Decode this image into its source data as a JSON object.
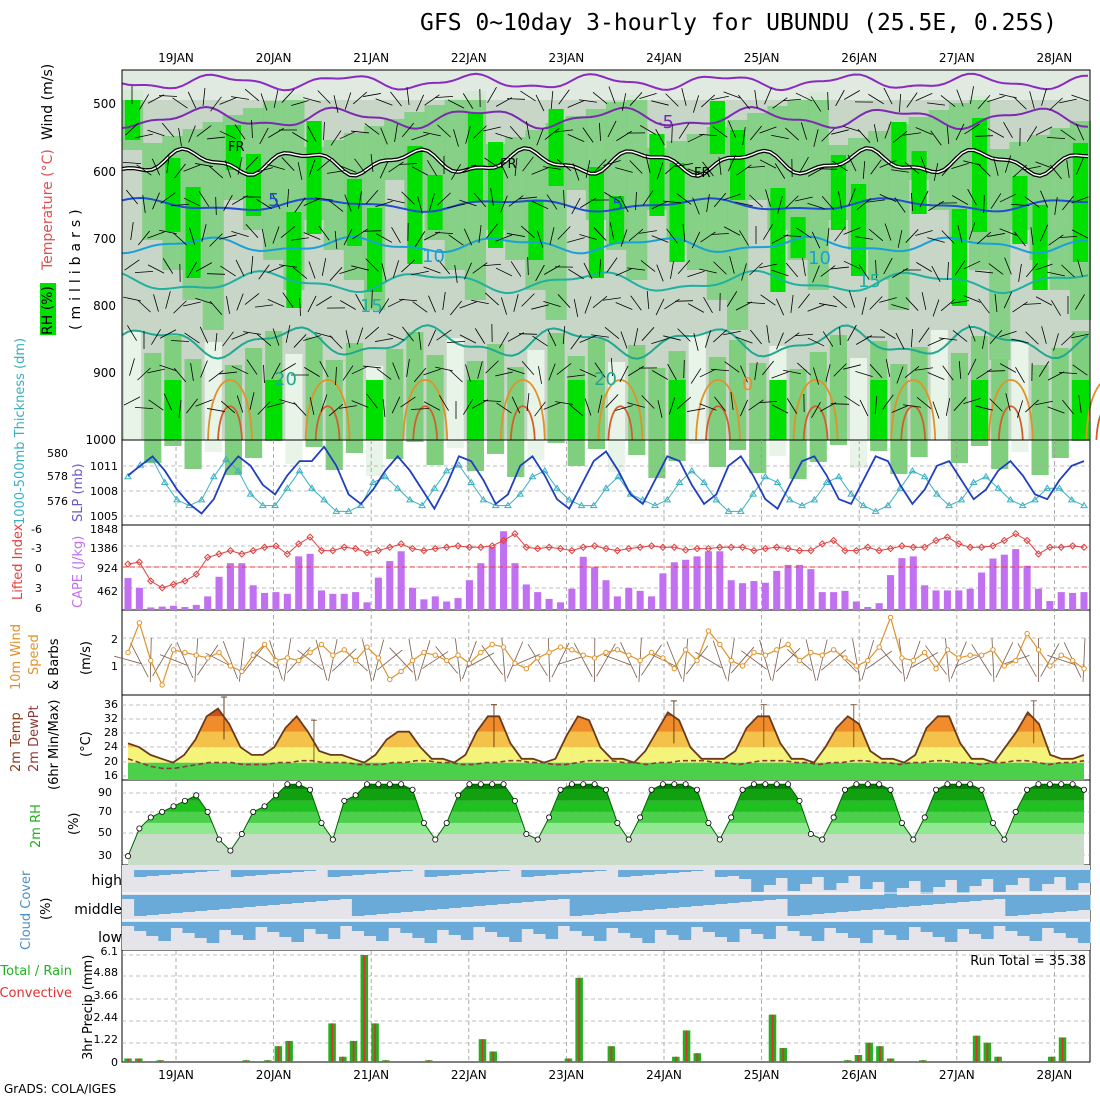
{
  "title": "GFS 0~10day 3-hourly for UBUNDU (25.5E, 0.25S)",
  "credit": "GrADS: COLA/IGES",
  "dates": [
    "19JAN",
    "20JAN",
    "21JAN",
    "22JAN",
    "23JAN",
    "24JAN",
    "25JAN",
    "26JAN",
    "27JAN",
    "28JAN"
  ],
  "colors": {
    "rh_green": "#00e000",
    "rh_mid": "#7fcf7f",
    "rh_grey": "#c8d6c8",
    "slp": "#1f3fbf",
    "thickness": "#3ab0c0",
    "cape": "#c070f0",
    "lifted": "#e04040",
    "wind": "#e0922a",
    "temp_line": "#6a3a1a",
    "dewpt": "#8a3a3a",
    "cloud": "#6aaad8",
    "precip_total": "#20b020",
    "precip_conv": "#e03030"
  },
  "panels": {
    "profile": {
      "ylabel_rh": "RH (%)",
      "ylabel_temp": "Temperature (°C)",
      "ylabel_wind": "Wind (m/s)",
      "ylabel_unit": "(millibars)",
      "pressure_ticks": [
        "500",
        "600",
        "700",
        "800",
        "900",
        "1000"
      ],
      "contour_labels": [
        "-5",
        "FR",
        "FR",
        "FR",
        "5",
        "5",
        "10",
        "10",
        "15",
        "15",
        "20",
        "20",
        "0"
      ]
    },
    "slp": {
      "label_left": "1000-500mb Thickness (dm)",
      "label_right": "SLP (mb)",
      "thickness_ticks": [
        "580",
        "578",
        "576"
      ],
      "slp_ticks": [
        "1011",
        "1008",
        "1005"
      ]
    },
    "cape": {
      "label_left": "Lifted Index",
      "label_right": "CAPE (J/kg)",
      "li_ticks": [
        "-6",
        "-3",
        "0",
        "3",
        "6"
      ],
      "cape_ticks": [
        "1848",
        "1386",
        "924",
        "462"
      ]
    },
    "wind": {
      "label_1": "10m Wind",
      "label_2": "Speed",
      "label_3": "& Barbs",
      "unit": "(m/s)",
      "ticks": [
        "2",
        "1"
      ]
    },
    "temp": {
      "label_1": "2m Temp",
      "label_2": "2m DewPt",
      "label_3": "(6hr Min/Max)",
      "unit": "(°C)",
      "ticks": [
        "36",
        "32",
        "28",
        "24",
        "20",
        "16"
      ]
    },
    "rh": {
      "label": "2m RH",
      "unit": "(%)",
      "ticks": [
        "90",
        "70",
        "50",
        "30"
      ]
    },
    "cloud": {
      "label": "Cloud Cover",
      "unit": "(%)",
      "levels": [
        "high",
        "middle",
        "low"
      ]
    },
    "precip": {
      "label_1": "Total / Rain",
      "label_2": "Convective",
      "label_3": "3hr Precip (mm)",
      "run_total": "Run Total = 35.38",
      "ticks": [
        "6.1",
        "4.88",
        "3.66",
        "2.44",
        "1.22",
        "0"
      ]
    }
  },
  "chart_data": {
    "type": "multi-panel meteogram",
    "title": "GFS 0~10day 3-hourly for UBUNDU (25.5E, 0.25S)",
    "x_categories": [
      "19JAN",
      "20JAN",
      "21JAN",
      "22JAN",
      "23JAN",
      "24JAN",
      "25JAN",
      "26JAN",
      "27JAN",
      "28JAN"
    ],
    "slp_mb": [
      1009.5,
      1010.5,
      1011.5,
      1010.0,
      1008.0,
      1006.5,
      1005.5,
      1007.0,
      1010.0,
      1011.5,
      1010.5,
      1008.5,
      1007.5,
      1009.5,
      1011.0,
      1011.0,
      1012.5,
      1010.5,
      1007.5,
      1006.5,
      1008.0,
      1010.0,
      1011.5,
      1010.0,
      1008.0,
      1006.0,
      1008.5,
      1011.5,
      1011.0,
      1009.0,
      1006.5,
      1007.5,
      1010.5,
      1011.5,
      1009.5,
      1007.0,
      1006.0,
      1008.5,
      1011.0,
      1012.0,
      1010.0,
      1007.5,
      1006.5,
      1009.0,
      1011.5,
      1011.0,
      1008.5,
      1006.5,
      1007.5,
      1010.5,
      1011.5,
      1009.5,
      1007.0,
      1006.0,
      1008.5,
      1011.0,
      1011.5,
      1009.5,
      1007.0,
      1006.5,
      1009.0,
      1011.5,
      1011.0,
      1008.5,
      1006.5,
      1008.0,
      1010.5,
      1011.0,
      1009.0,
      1007.0,
      1008.0,
      1010.0,
      1011.0,
      1009.5,
      1007.5,
      1007.0,
      1009.0,
      1010.5,
      1011.0
    ],
    "thickness_dm": [
      578.5,
      579.5,
      580.0,
      578.0,
      576.5,
      576.0,
      576.5,
      578.5,
      580.0,
      579.0,
      577.0,
      576.0,
      576.0,
      577.5,
      579.0,
      577.5,
      576.5,
      575.5,
      575.5,
      576.0,
      578.0,
      578.5,
      577.5,
      576.5,
      576.0,
      577.5,
      579.0,
      579.5,
      578.0,
      576.5,
      576.0,
      576.0,
      577.0,
      578.5,
      579.0,
      577.5,
      576.5,
      576.0,
      576.0,
      577.5,
      578.5,
      577.0,
      576.5,
      576.0,
      576.5,
      578.0,
      579.0,
      578.0,
      576.5,
      575.5,
      575.5,
      577.0,
      578.5,
      578.0,
      576.5,
      576.0,
      576.5,
      578.0,
      578.5,
      577.0,
      576.0,
      575.5,
      576.0,
      577.5,
      579.0,
      578.5,
      577.0,
      576.0,
      576.5,
      578.0,
      578.5,
      577.5,
      576.5,
      576.0,
      576.5,
      577.5,
      577.5,
      576.5,
      576.0
    ],
    "cape_jkg": [
      750,
      520,
      60,
      80,
      100,
      70,
      120,
      320,
      780,
      1100,
      1100,
      580,
      400,
      420,
      380,
      1260,
      1320,
      460,
      380,
      380,
      420,
      180,
      760,
      1150,
      1380,
      520,
      250,
      320,
      200,
      280,
      700,
      1100,
      1480,
      1850,
      1100,
      600,
      420,
      260,
      180,
      500,
      1250,
      1000,
      700,
      320,
      520,
      450,
      320,
      860,
      1120,
      1180,
      1260,
      1380,
      1380,
      700,
      630,
      680,
      640,
      920,
      1060,
      1060,
      960,
      420,
      420,
      450,
      200,
      70,
      160,
      820,
      1220,
      1260,
      580,
      460,
      460,
      460,
      500,
      880,
      1210,
      1300,
      1430,
      1040,
      500,
      210,
      420,
      400,
      420
    ],
    "lifted_index": [
      -0.5,
      -0.8,
      2.0,
      3.0,
      2.5,
      2.0,
      1.0,
      -1.5,
      -2.0,
      -2.5,
      -2.0,
      -2.5,
      -3.0,
      -3.2,
      -2.0,
      -3.5,
      -4.5,
      -2.5,
      -2.5,
      -3.0,
      -2.8,
      -2.2,
      -2.5,
      -3.0,
      -3.5,
      -2.8,
      -2.5,
      -2.8,
      -3.0,
      -3.2,
      -3.0,
      -3.0,
      -3.2,
      -4.0,
      -5.0,
      -3.0,
      -2.8,
      -3.0,
      -2.8,
      -2.5,
      -3.0,
      -3.2,
      -2.8,
      -2.5,
      -2.8,
      -3.0,
      -3.2,
      -3.0,
      -3.0,
      -2.6,
      -2.8,
      -2.8,
      -3.0,
      -3.0,
      -3.0,
      -2.5,
      -2.8,
      -3.0,
      -2.8,
      -2.5,
      -2.5,
      -3.5,
      -4.0,
      -2.5,
      -2.5,
      -3.0,
      -2.5,
      -2.8,
      -3.2,
      -3.0,
      -3.0,
      -4.0,
      -4.5,
      -3.5,
      -3.0,
      -3.0,
      -3.2,
      -4.0,
      -5.0,
      -4.0,
      -2.0,
      -3.0,
      -3.0,
      -3.2,
      -3.0
    ],
    "wind_speed_ms": [
      1.5,
      2.6,
      1.2,
      0.3,
      1.6,
      1.5,
      1.4,
      1.3,
      1.5,
      1.0,
      0.8,
      1.4,
      1.8,
      1.2,
      1.3,
      1.2,
      1.5,
      1.8,
      1.4,
      1.6,
      1.2,
      1.7,
      1.3,
      0.5,
      0.8,
      1.2,
      1.5,
      1.4,
      1.2,
      1.4,
      1.1,
      1.5,
      1.8,
      1.7,
      1.1,
      0.9,
      1.3,
      1.5,
      1.7,
      1.6,
      1.4,
      1.3,
      1.5,
      1.6,
      1.4,
      1.2,
      1.5,
      1.3,
      0.9,
      1.6,
      1.2,
      2.3,
      1.8,
      1.2,
      1.0,
      1.5,
      1.4,
      1.6,
      1.8,
      1.2,
      1.5,
      1.4,
      1.6,
      1.3,
      1.0,
      1.2,
      1.7,
      2.8,
      1.3,
      1.2,
      1.5,
      0.9,
      1.6,
      1.3,
      1.4,
      1.4,
      1.6,
      1.0,
      1.2,
      2.2,
      1.6,
      1.0,
      1.4,
      1.2,
      0.9
    ],
    "temp_2m_c": [
      25,
      24,
      22,
      21,
      20,
      22,
      26,
      32,
      34,
      30,
      24,
      22,
      22,
      24,
      29,
      32,
      28,
      23,
      22,
      22,
      21,
      20,
      22,
      26,
      28,
      28,
      24,
      21,
      21,
      20,
      22,
      28,
      32,
      32,
      25,
      21,
      21,
      20,
      21,
      27,
      32,
      31,
      24,
      21,
      21,
      20,
      23,
      28,
      33,
      31,
      24,
      21,
      21,
      21,
      23,
      29,
      32,
      32,
      25,
      21,
      21,
      20,
      24,
      29,
      32,
      30,
      23,
      21,
      21,
      20,
      22,
      29,
      32,
      32,
      25,
      21,
      21,
      20,
      24,
      28,
      33,
      30,
      22,
      21,
      21,
      22
    ],
    "dewpoint_2m_c": [
      21,
      20,
      19,
      18.5,
      18.5,
      19,
      19.5,
      20,
      20,
      20,
      19.5,
      19.5,
      19.5,
      20,
      20,
      20.5,
      20.5,
      20,
      20,
      20,
      19.5,
      19.5,
      19.5,
      20,
      20,
      20.5,
      20.5,
      20,
      20,
      19.5,
      19.5,
      20,
      20,
      20.5,
      20.5,
      20,
      20,
      19.5,
      19.5,
      20,
      20.5,
      20.5,
      20.5,
      20,
      20,
      19.5,
      20,
      20,
      20.5,
      20.5,
      20.5,
      20,
      20,
      19.5,
      20,
      20.5,
      20.5,
      20.5,
      20,
      20,
      19.5,
      20,
      20,
      20.5,
      20.5,
      20,
      20,
      19.5,
      20,
      20,
      20.5,
      20.5,
      20,
      20,
      19.5,
      20,
      20,
      20.5,
      20.5,
      20,
      19.5,
      20,
      20,
      20.5
    ],
    "rh_2m_pct": [
      30,
      55,
      65,
      70,
      75,
      80,
      85,
      70,
      45,
      35,
      50,
      70,
      75,
      85,
      95,
      95,
      90,
      60,
      45,
      80,
      85,
      95,
      95,
      95,
      95,
      90,
      60,
      45,
      60,
      85,
      95,
      95,
      95,
      95,
      80,
      50,
      45,
      65,
      90,
      95,
      95,
      95,
      90,
      60,
      45,
      65,
      90,
      95,
      95,
      95,
      90,
      60,
      45,
      65,
      90,
      95,
      95,
      95,
      95,
      80,
      50,
      45,
      65,
      90,
      95,
      95,
      95,
      90,
      60,
      45,
      65,
      90,
      95,
      95,
      95,
      90,
      60,
      45,
      70,
      90,
      95,
      95,
      95,
      95,
      90
    ],
    "precip_total_mm": [
      0.2,
      0.2,
      0,
      0.1,
      0,
      0,
      0,
      0,
      0,
      0,
      0,
      0.1,
      0,
      0.1,
      0.9,
      1.2,
      0,
      0,
      0,
      2.2,
      0.3,
      1.2,
      6.1,
      2.2,
      0.1,
      0,
      0,
      0,
      0.1,
      0,
      0,
      0,
      0,
      1.3,
      0.6,
      0,
      0,
      0,
      0,
      0,
      0,
      0.2,
      4.8,
      0,
      0,
      0.9,
      0,
      0,
      0,
      0,
      0,
      0.3,
      1.8,
      0.5,
      0,
      0,
      0,
      0,
      0,
      0,
      2.7,
      0.8,
      0,
      0,
      0,
      0,
      0,
      0.1,
      0.4,
      1.1,
      0.9,
      0.2,
      0,
      0,
      0.1,
      0,
      0,
      0,
      0,
      1.5,
      1.1,
      0.3,
      0,
      0,
      0,
      0,
      0.3,
      1.4,
      0,
      0
    ]
  }
}
